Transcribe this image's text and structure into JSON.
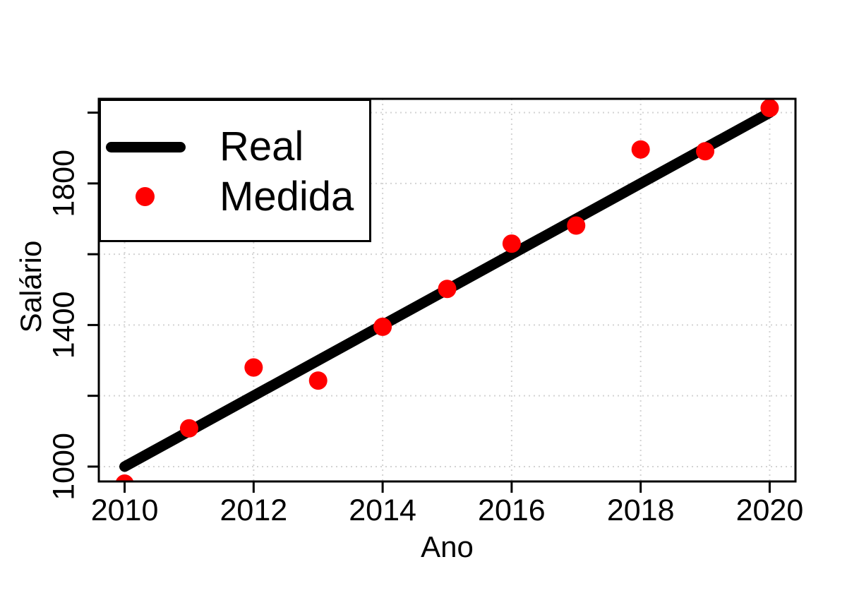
{
  "chart_data": {
    "type": "scatter",
    "title": "",
    "xlabel": "Ano",
    "ylabel": "Salário",
    "xlim": [
      2009.6,
      2020.4
    ],
    "ylim": [
      958,
      2039
    ],
    "x_ticks": [
      2010,
      2012,
      2014,
      2016,
      2018,
      2020
    ],
    "x_tick_labels": [
      "2010",
      "2012",
      "2014",
      "2016",
      "2018",
      "2020"
    ],
    "y_ticks": [
      1000,
      1200,
      1400,
      1600,
      1800,
      2000
    ],
    "y_tick_labels": [
      "1000",
      "",
      "1400",
      "",
      "1800",
      ""
    ],
    "x_gridlines": [
      2010,
      2012,
      2014,
      2016,
      2018,
      2020
    ],
    "y_gridlines": [
      1000,
      1200,
      1400,
      1600,
      1800,
      2000
    ],
    "grid_style": "dotted",
    "grid_on": true,
    "colors": {
      "real_line": "#000000",
      "medida_point": "#ff0000",
      "grid": "#d3d3d3",
      "axis": "#000000",
      "background": "#ffffff"
    },
    "series": [
      {
        "name": "Real",
        "type": "line",
        "color": "#000000",
        "x": [
          2010,
          2020
        ],
        "y": [
          1000,
          2000
        ]
      },
      {
        "name": "Medida",
        "type": "scatter",
        "color": "#ff0000",
        "x": [
          2010,
          2011,
          2012,
          2013,
          2014,
          2015,
          2016,
          2017,
          2018,
          2019,
          2020
        ],
        "y": [
          952,
          1108,
          1280,
          1243,
          1395,
          1502,
          1630,
          1681,
          1896,
          1891,
          2013
        ]
      }
    ],
    "legend": {
      "position": "top-left",
      "entries": [
        {
          "label": "Real",
          "marker": "thick-line",
          "color": "#000000"
        },
        {
          "label": "Medida",
          "marker": "filled-circle",
          "color": "#ff0000"
        }
      ]
    }
  }
}
